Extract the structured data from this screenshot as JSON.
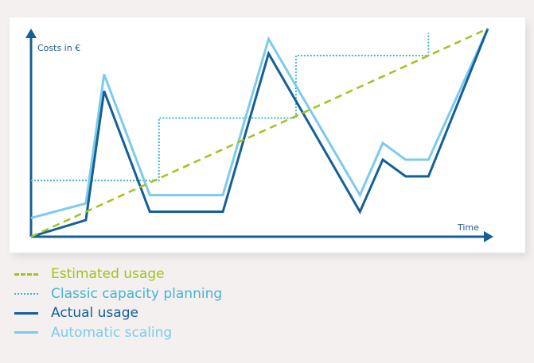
{
  "chart_data": {
    "type": "line",
    "ylabel": "Costs in €",
    "xlabel": "Time",
    "grid": false,
    "legend_placement": "bottom-left",
    "x_range": [
      0,
      100
    ],
    "y_range": [
      0,
      100
    ],
    "series": [
      {
        "name": "Estimated usage",
        "style": "dashed",
        "color": "#a2c21f",
        "x": [
          0,
          100
        ],
        "y": [
          0,
          100
        ]
      },
      {
        "name": "Classic capacity planning",
        "style": "dotted",
        "color": "#46b4d2",
        "x": [
          0,
          28,
          28,
          58,
          58,
          87,
          87
        ],
        "y": [
          27,
          27,
          57,
          57,
          87,
          87,
          98
        ]
      },
      {
        "name": "Actual usage",
        "style": "solid",
        "color": "#155f96",
        "x": [
          0,
          12,
          16,
          26,
          42,
          52,
          72,
          77,
          82,
          87,
          100
        ],
        "y": [
          0,
          8,
          70,
          12,
          12,
          88,
          12,
          37,
          29,
          29,
          100
        ]
      },
      {
        "name": "Automatic scaling",
        "style": "solid",
        "color": "#7ccbec",
        "x": [
          0,
          12,
          16,
          26,
          42,
          52,
          72,
          77,
          82,
          87,
          100
        ],
        "y": [
          9,
          16,
          78,
          20,
          20,
          95,
          20,
          45,
          37,
          37,
          100
        ]
      }
    ]
  },
  "legend": {
    "items": [
      {
        "label": "Estimated usage",
        "color": "#a2c21f"
      },
      {
        "label": "Classic capacity planning",
        "color": "#46b4d2"
      },
      {
        "label": "Actual usage",
        "color": "#155f96"
      },
      {
        "label": "Automatic scaling",
        "color": "#7ccbec"
      }
    ]
  },
  "colors": {
    "axis": "#155f96",
    "background": "#f3f0ef",
    "panel": "#ffffff"
  }
}
